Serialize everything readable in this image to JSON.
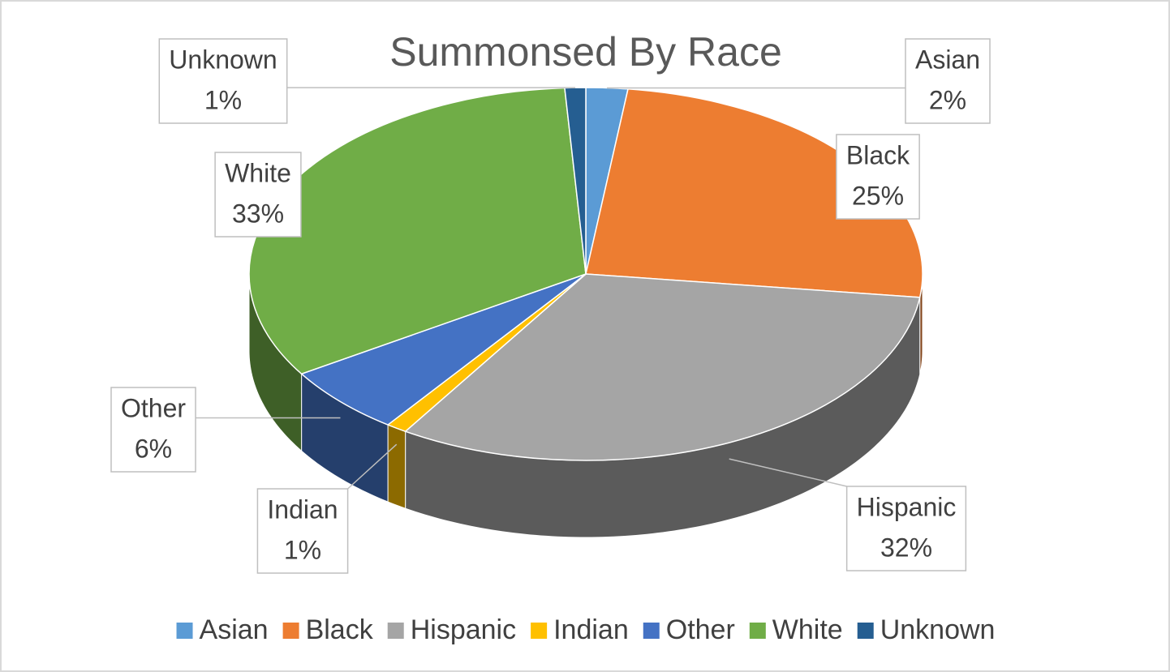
{
  "chart_data": {
    "type": "pie3d",
    "title": "Summonsed By Race",
    "categories": [
      "Asian",
      "Black",
      "Hispanic",
      "Indian",
      "Other",
      "White",
      "Unknown"
    ],
    "values": [
      2,
      25,
      32,
      1,
      6,
      33,
      1
    ],
    "value_labels": [
      "2%",
      "25%",
      "32%",
      "1%",
      "6%",
      "33%",
      "1%"
    ],
    "colors": [
      "#5b9bd5",
      "#ed7d31",
      "#a5a5a5",
      "#ffc000",
      "#4472c4",
      "#70ad47",
      "#255e91"
    ],
    "legend": "bottom"
  }
}
